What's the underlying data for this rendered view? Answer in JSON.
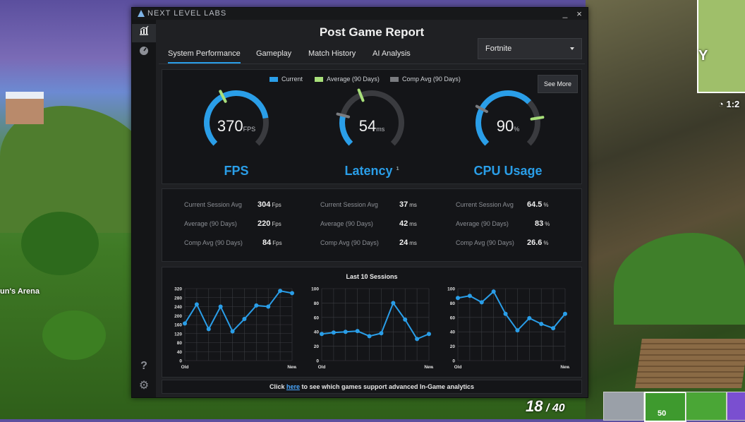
{
  "window": {
    "brand": "NEXT LEVEL LABS",
    "minimize": "_",
    "close": "×"
  },
  "sidebar": {
    "items": [
      {
        "name": "performance-chart-icon",
        "glyph": "▦",
        "active": true
      },
      {
        "name": "speedometer-icon",
        "glyph": "◐",
        "active": false
      }
    ],
    "bottom": [
      {
        "name": "help-icon",
        "glyph": "?"
      },
      {
        "name": "settings-gear-icon",
        "glyph": "⚙"
      }
    ]
  },
  "report": {
    "title": "Post Game Report",
    "tabs": [
      "System Performance",
      "Gameplay",
      "Match History",
      "AI Analysis"
    ],
    "active_tab": 0,
    "game_select": "Fortnite"
  },
  "legend": {
    "current": "Current",
    "average": "Average (90 Days)",
    "comp_avg": "Comp Avg (90 Days)"
  },
  "see_more": "See More",
  "gauges": [
    {
      "label": "FPS",
      "value": "370",
      "unit": "FPS",
      "fill_fraction": 0.8,
      "avg_marker_fraction": 0.4,
      "comp_marker_fraction": 0.4,
      "footnote": ""
    },
    {
      "label": "Latency",
      "value": "54",
      "unit": "ms",
      "fill_fraction": 0.22,
      "avg_marker_fraction": 0.42,
      "comp_marker_fraction": 0.22,
      "footnote": "1"
    },
    {
      "label": "CPU Usage",
      "value": "90",
      "unit": "%",
      "fill_fraction": 0.67,
      "avg_marker_fraction": 0.8,
      "comp_marker_fraction": 0.27,
      "footnote": ""
    }
  ],
  "stats": [
    {
      "rows": [
        {
          "label": "Current Session Avg",
          "value": "304",
          "unit": "Fps"
        },
        {
          "label": "Average (90 Days)",
          "value": "220",
          "unit": "Fps"
        },
        {
          "label": "Comp Avg (90 Days)",
          "value": "84",
          "unit": "Fps"
        }
      ]
    },
    {
      "rows": [
        {
          "label": "Current Session Avg",
          "value": "37",
          "unit": "ms"
        },
        {
          "label": "Average (90 Days)",
          "value": "42",
          "unit": "ms"
        },
        {
          "label": "Comp Avg (90 Days)",
          "value": "24",
          "unit": "ms"
        }
      ]
    },
    {
      "rows": [
        {
          "label": "Current Session Avg",
          "value": "64.5",
          "unit": "%"
        },
        {
          "label": "Average (90 Days)",
          "value": "83",
          "unit": "%"
        },
        {
          "label": "Comp Avg (90 Days)",
          "value": "26.6",
          "unit": "%"
        }
      ]
    }
  ],
  "sessions_title": "Last 10 Sessions",
  "chart_data": [
    {
      "type": "line",
      "x_labels": [
        "Old",
        "New"
      ],
      "ylim": [
        0,
        320
      ],
      "yticks": [
        0,
        40,
        80,
        120,
        160,
        200,
        240,
        280,
        320
      ],
      "values": [
        165,
        250,
        140,
        240,
        130,
        185,
        245,
        240,
        310,
        300
      ]
    },
    {
      "type": "line",
      "x_labels": [
        "Old",
        "New"
      ],
      "ylim": [
        0,
        100
      ],
      "yticks": [
        0,
        20,
        40,
        60,
        80,
        100
      ],
      "values": [
        37,
        39,
        40,
        41,
        34,
        38,
        80,
        57,
        30,
        37
      ]
    },
    {
      "type": "line",
      "x_labels": [
        "Old",
        "New"
      ],
      "ylim": [
        0,
        100
      ],
      "yticks": [
        0,
        20,
        40,
        60,
        80,
        100
      ],
      "values": [
        87,
        90,
        81,
        96,
        65,
        42,
        59,
        51,
        45,
        65
      ]
    }
  ],
  "footer": {
    "pre": "Click ",
    "link": "here",
    "post": " to see which games support advanced In-Game analytics"
  },
  "game_hud": {
    "arena_text": "un's Arena",
    "minimap_letter": "Y",
    "timer": "1:2",
    "ammo_current": "18",
    "ammo_max": "40",
    "slot_count": "50"
  },
  "colors": {
    "current": "#2a9ee8",
    "average": "#a8e07a",
    "comp_avg": "#7a7c80",
    "track": "#3a3b3f"
  }
}
